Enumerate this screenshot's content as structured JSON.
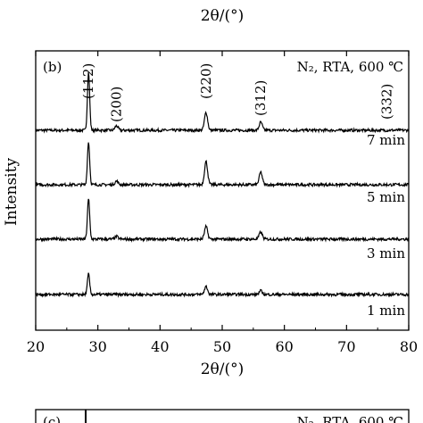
{
  "top_fragment": {
    "xlabel": "2θ/(°)"
  },
  "chart_data": {
    "type": "line",
    "panel_label": "(b)",
    "condition": "N₂, RTA, 600 ℃",
    "xlabel": "2θ/(°)",
    "ylabel": "Intensity",
    "xlim": [
      20,
      80
    ],
    "xticks": [
      20,
      30,
      40,
      50,
      60,
      70,
      80
    ],
    "grid": false,
    "peak_labels": [
      {
        "text": "(112)",
        "x": 28.5
      },
      {
        "text": "(200)",
        "x": 33.0
      },
      {
        "text": "(220)",
        "x": 47.4
      },
      {
        "text": "(312)",
        "x": 56.2
      },
      {
        "text": "(332)",
        "x": 76.5
      }
    ],
    "series": [
      {
        "name": "7 min",
        "peaks": [
          [
            28.5,
            65
          ],
          [
            33.0,
            5
          ],
          [
            47.4,
            20
          ],
          [
            56.2,
            9
          ]
        ]
      },
      {
        "name": "5 min",
        "peaks": [
          [
            28.5,
            48
          ],
          [
            33.0,
            4
          ],
          [
            47.4,
            26
          ],
          [
            56.2,
            14
          ]
        ]
      },
      {
        "name": "3 min",
        "peaks": [
          [
            28.5,
            45
          ],
          [
            33.0,
            3
          ],
          [
            47.4,
            14
          ],
          [
            56.2,
            8
          ]
        ]
      },
      {
        "name": "1 min",
        "peaks": [
          [
            28.5,
            23
          ],
          [
            47.4,
            9
          ],
          [
            56.2,
            4
          ]
        ]
      }
    ]
  },
  "bottom_fragment": {
    "panel_label": "(c)",
    "condition": "N₂, RTA, 600 ℃"
  }
}
